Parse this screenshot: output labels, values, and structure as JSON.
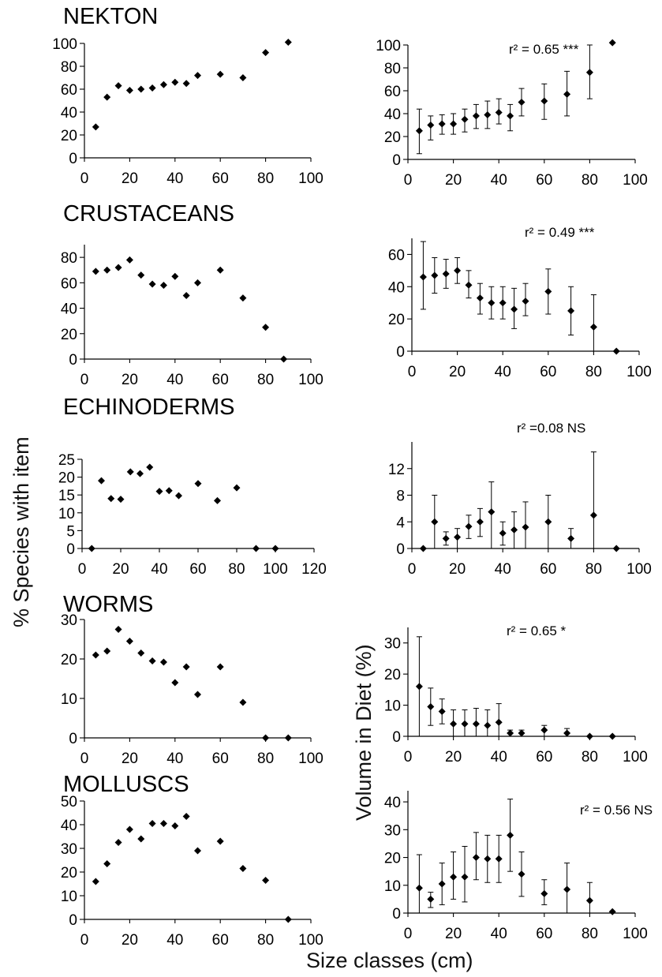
{
  "figure": {
    "y_label_left": "% Species with item",
    "y_label_right": "Volume in Diet (%)",
    "x_label": "Size classes (cm)"
  },
  "chart_data": [
    {
      "id": "nekton-species",
      "type": "scatter",
      "title": "NEKTON",
      "xlim": [
        0,
        100
      ],
      "ylim": [
        0,
        100
      ],
      "xticks": [
        0,
        20,
        40,
        60,
        80,
        100
      ],
      "yticks": [
        0,
        20,
        40,
        60,
        80,
        100
      ],
      "points": [
        [
          5,
          27
        ],
        [
          10,
          53
        ],
        [
          15,
          63
        ],
        [
          20,
          59
        ],
        [
          25,
          60
        ],
        [
          30,
          61
        ],
        [
          35,
          64
        ],
        [
          40,
          66
        ],
        [
          45,
          65
        ],
        [
          50,
          72
        ],
        [
          60,
          73
        ],
        [
          70,
          70
        ],
        [
          80,
          92
        ],
        [
          90,
          101
        ]
      ]
    },
    {
      "id": "nekton-volume",
      "type": "scatter",
      "annotation": "r² = 0.65 ***",
      "xlim": [
        0,
        100
      ],
      "ylim": [
        0,
        100
      ],
      "xticks": [
        0,
        20,
        40,
        60,
        80,
        100
      ],
      "yticks": [
        0,
        20,
        40,
        60,
        80,
        100
      ],
      "points": [
        [
          5,
          25,
          5,
          44
        ],
        [
          10,
          30,
          17,
          38
        ],
        [
          15,
          31,
          22,
          39
        ],
        [
          20,
          31,
          22,
          40
        ],
        [
          25,
          35,
          24,
          44
        ],
        [
          30,
          38,
          27,
          48
        ],
        [
          35,
          39,
          27,
          51
        ],
        [
          40,
          41,
          31,
          53
        ],
        [
          45,
          38,
          25,
          48
        ],
        [
          50,
          50,
          38,
          62
        ],
        [
          60,
          51,
          35,
          66
        ],
        [
          70,
          57,
          38,
          77
        ],
        [
          80,
          76,
          53,
          100
        ],
        [
          90,
          102,
          102,
          102
        ]
      ]
    },
    {
      "id": "crustaceans-species",
      "type": "scatter",
      "title": "CRUSTACEANS",
      "xlim": [
        0,
        100
      ],
      "ylim": [
        0,
        90
      ],
      "xticks": [
        0,
        20,
        40,
        60,
        80,
        100
      ],
      "yticks": [
        0,
        20,
        40,
        60,
        80
      ],
      "points": [
        [
          5,
          69
        ],
        [
          10,
          70
        ],
        [
          15,
          72
        ],
        [
          20,
          78
        ],
        [
          25,
          66
        ],
        [
          30,
          59
        ],
        [
          35,
          58
        ],
        [
          40,
          65
        ],
        [
          45,
          50
        ],
        [
          50,
          60
        ],
        [
          60,
          70
        ],
        [
          70,
          48
        ],
        [
          80,
          25
        ],
        [
          88,
          0
        ]
      ]
    },
    {
      "id": "crustaceans-volume",
      "type": "scatter",
      "annotation": "r² = 0.49 ***",
      "xlim": [
        0,
        100
      ],
      "ylim": [
        0,
        70
      ],
      "xticks": [
        0,
        20,
        40,
        60,
        80,
        100
      ],
      "yticks": [
        0,
        20,
        40,
        60
      ],
      "points": [
        [
          5,
          46,
          26,
          68
        ],
        [
          10,
          47,
          36,
          58
        ],
        [
          15,
          48,
          39,
          57
        ],
        [
          20,
          50,
          42,
          58
        ],
        [
          25,
          41,
          33,
          50
        ],
        [
          30,
          33,
          23,
          42
        ],
        [
          35,
          30,
          20,
          40
        ],
        [
          40,
          30,
          20,
          40
        ],
        [
          45,
          26,
          14,
          39
        ],
        [
          50,
          31,
          22,
          42
        ],
        [
          60,
          37,
          23,
          51
        ],
        [
          70,
          25,
          10,
          40
        ],
        [
          80,
          15,
          0,
          35
        ],
        [
          90,
          0,
          0,
          0
        ]
      ]
    },
    {
      "id": "echinoderms-species",
      "type": "scatter",
      "title": "ECHINODERMS",
      "xlim": [
        0,
        120
      ],
      "ylim": [
        0,
        25
      ],
      "xticks": [
        0,
        20,
        40,
        60,
        80,
        100,
        120
      ],
      "yticks": [
        0,
        5,
        10,
        15,
        20,
        25
      ],
      "points": [
        [
          5,
          0
        ],
        [
          10,
          19
        ],
        [
          15,
          14
        ],
        [
          20,
          13.8
        ],
        [
          25,
          21.5
        ],
        [
          30,
          21
        ],
        [
          35,
          22.8
        ],
        [
          40,
          16
        ],
        [
          45,
          16.2
        ],
        [
          50,
          14.8
        ],
        [
          60,
          18.2
        ],
        [
          70,
          13.4
        ],
        [
          80,
          17
        ],
        [
          90,
          0
        ],
        [
          100,
          0
        ]
      ]
    },
    {
      "id": "echinoderms-volume",
      "type": "scatter",
      "annotation": "r² =0.08  NS",
      "xlim": [
        0,
        100
      ],
      "ylim": [
        0,
        16
      ],
      "xticks": [
        0,
        20,
        40,
        60,
        80,
        100
      ],
      "yticks": [
        0,
        4,
        8,
        12
      ],
      "points": [
        [
          5,
          0,
          0,
          0
        ],
        [
          10,
          4,
          0,
          8
        ],
        [
          15,
          1.5,
          0.5,
          2.5
        ],
        [
          20,
          1.7,
          0,
          3
        ],
        [
          25,
          3.3,
          1.5,
          5
        ],
        [
          30,
          4,
          1.8,
          6
        ],
        [
          35,
          5.5,
          0,
          10
        ],
        [
          40,
          2.3,
          0.5,
          4
        ],
        [
          45,
          2.8,
          0,
          5.5
        ],
        [
          50,
          3.2,
          0,
          7
        ],
        [
          60,
          4,
          0,
          8
        ],
        [
          70,
          1.5,
          0,
          3
        ],
        [
          80,
          5,
          0,
          14.5
        ],
        [
          90,
          0,
          0,
          0
        ]
      ]
    },
    {
      "id": "worms-species",
      "type": "scatter",
      "title": "WORMS",
      "xlim": [
        0,
        100
      ],
      "ylim": [
        0,
        30
      ],
      "xticks": [
        0,
        20,
        40,
        60,
        80,
        100
      ],
      "yticks": [
        0,
        10,
        20,
        30
      ],
      "points": [
        [
          5,
          21
        ],
        [
          10,
          22
        ],
        [
          15,
          27.5
        ],
        [
          20,
          24.5
        ],
        [
          25,
          21.5
        ],
        [
          30,
          19.5
        ],
        [
          35,
          19.2
        ],
        [
          40,
          14
        ],
        [
          45,
          18
        ],
        [
          50,
          11
        ],
        [
          60,
          18
        ],
        [
          70,
          9
        ],
        [
          80,
          0
        ],
        [
          90,
          0
        ]
      ]
    },
    {
      "id": "worms-volume",
      "type": "scatter",
      "annotation": "r² = 0.65  *",
      "xlim": [
        0,
        100
      ],
      "ylim": [
        0,
        35
      ],
      "xticks": [
        0,
        20,
        40,
        60,
        80,
        100
      ],
      "yticks": [
        0,
        10,
        20,
        30
      ],
      "points": [
        [
          5,
          16,
          0,
          32
        ],
        [
          10,
          9.5,
          3.5,
          15.5
        ],
        [
          15,
          8,
          4,
          12
        ],
        [
          20,
          4,
          0,
          8.5
        ],
        [
          25,
          4,
          0,
          8.5
        ],
        [
          30,
          4,
          0,
          9
        ],
        [
          35,
          3.5,
          0,
          8.5
        ],
        [
          40,
          4.5,
          0,
          10.5
        ],
        [
          45,
          1,
          0,
          2
        ],
        [
          50,
          1,
          0,
          2
        ],
        [
          60,
          2,
          0,
          3.5
        ],
        [
          70,
          1,
          0,
          2.5
        ],
        [
          80,
          0,
          0,
          0
        ],
        [
          90,
          0,
          0,
          0
        ]
      ]
    },
    {
      "id": "molluscs-species",
      "type": "scatter",
      "title": "MOLLUSCS",
      "xlim": [
        0,
        100
      ],
      "ylim": [
        0,
        50
      ],
      "xticks": [
        0,
        20,
        40,
        60,
        80,
        100
      ],
      "yticks": [
        0,
        10,
        20,
        30,
        40,
        50
      ],
      "points": [
        [
          5,
          16
        ],
        [
          10,
          23.5
        ],
        [
          15,
          32.5
        ],
        [
          20,
          38
        ],
        [
          25,
          34
        ],
        [
          30,
          40.5
        ],
        [
          35,
          40.5
        ],
        [
          40,
          39.5
        ],
        [
          45,
          43.5
        ],
        [
          50,
          29
        ],
        [
          60,
          33
        ],
        [
          70,
          21.5
        ],
        [
          80,
          16.5
        ],
        [
          90,
          0
        ]
      ]
    },
    {
      "id": "molluscs-volume",
      "type": "scatter",
      "annotation": "r² = 0.56  NS",
      "xlim": [
        0,
        100
      ],
      "ylim": [
        0,
        44
      ],
      "xticks": [
        0,
        20,
        40,
        60,
        80,
        100
      ],
      "yticks": [
        0,
        10,
        20,
        30,
        40
      ],
      "points": [
        [
          5,
          9,
          0,
          21
        ],
        [
          10,
          5,
          2,
          7.5
        ],
        [
          15,
          10.5,
          3,
          18
        ],
        [
          20,
          13,
          5,
          22
        ],
        [
          25,
          13,
          4,
          24
        ],
        [
          30,
          20,
          12,
          29
        ],
        [
          35,
          19.5,
          11,
          28
        ],
        [
          40,
          19.5,
          11,
          28
        ],
        [
          45,
          28,
          15,
          41
        ],
        [
          50,
          14,
          6,
          22
        ],
        [
          60,
          7,
          3,
          12
        ],
        [
          70,
          8.5,
          0,
          18
        ],
        [
          80,
          4.5,
          0,
          11
        ],
        [
          90,
          0.5,
          0,
          0.5
        ]
      ]
    }
  ]
}
